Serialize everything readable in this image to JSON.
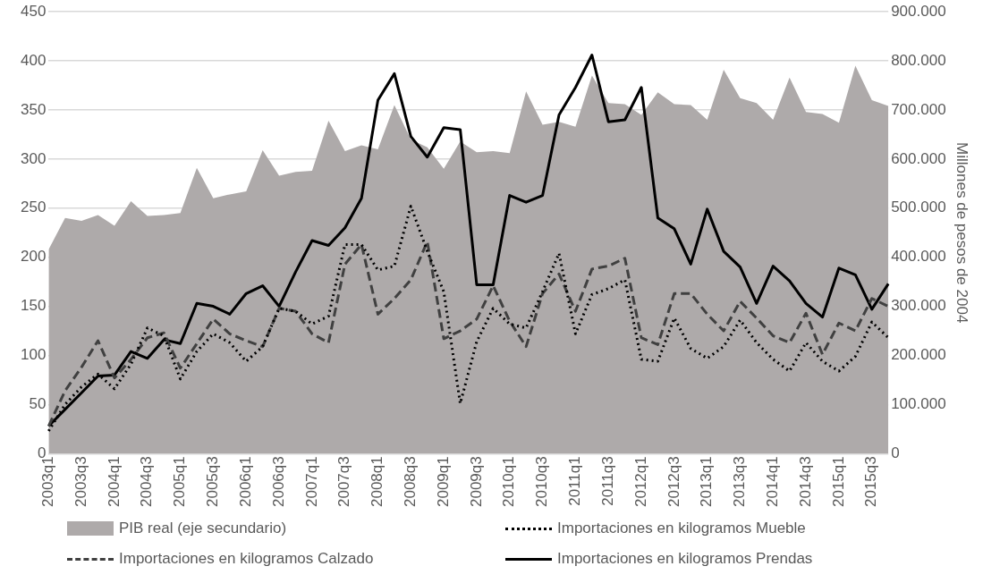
{
  "chart_data": {
    "type": "line",
    "categories": [
      "2003q1",
      null,
      "2003q3",
      null,
      "2004q1",
      null,
      "2004q3",
      null,
      "2005q1",
      null,
      "2005q3",
      null,
      "2006q1",
      null,
      "2006q3",
      null,
      "2007q1",
      null,
      "2007q3",
      null,
      "2008q1",
      null,
      "2008q3",
      null,
      "2009q1",
      null,
      "2009q3",
      null,
      "2010q1",
      null,
      "2010q3",
      null,
      "2011q1",
      null,
      "2011q3",
      null,
      "2012q1",
      null,
      "2012q3",
      null,
      "2013q1",
      null,
      "2013q3",
      null,
      "2014q1",
      null,
      "2014q3",
      null,
      "2015q1",
      null,
      "2015q3",
      null
    ],
    "y2label": "Millones de pesos de 2004",
    "ylim": [
      0,
      450
    ],
    "yticks": [
      0,
      50,
      100,
      150,
      200,
      250,
      300,
      350,
      400,
      450
    ],
    "y2lim": [
      0,
      900000
    ],
    "y2ticks": [
      {
        "value": 0,
        "label": "0"
      },
      {
        "value": 100000,
        "label": "100.000"
      },
      {
        "value": 200000,
        "label": "200.000"
      },
      {
        "value": 300000,
        "label": "300.000"
      },
      {
        "value": 400000,
        "label": "400.000"
      },
      {
        "value": 500000,
        "label": "500.000"
      },
      {
        "value": 600000,
        "label": "600.000"
      },
      {
        "value": 700000,
        "label": "700.000"
      },
      {
        "value": 800000,
        "label": "800.000"
      },
      {
        "value": 900000,
        "label": "900.000"
      }
    ],
    "grid": "y",
    "legend": "bottom",
    "marker": "none",
    "series": [
      {
        "name": "PIB real (eje secundario)",
        "type": "area",
        "axis": "y2",
        "color": "#aeaaaa",
        "values": [
          416000,
          480000,
          474000,
          486000,
          464000,
          514000,
          484000,
          486000,
          490000,
          582000,
          520000,
          528000,
          534000,
          618000,
          566000,
          574000,
          576000,
          678000,
          616000,
          628000,
          620000,
          710000,
          640000,
          624000,
          580000,
          636000,
          614000,
          616000,
          612000,
          738000,
          670000,
          676000,
          666000,
          770000,
          714000,
          712000,
          690000,
          736000,
          712000,
          710000,
          680000,
          782000,
          724000,
          714000,
          680000,
          766000,
          696000,
          692000,
          674000,
          790000,
          720000,
          708000
        ]
      },
      {
        "name": "Importaciones en kilogramos Mueble",
        "line_style": "dotted",
        "color": "#000000",
        "values": [
          23,
          50,
          68,
          81,
          66,
          91,
          128,
          120,
          76,
          104,
          122,
          113,
          94,
          109,
          148,
          145,
          132,
          140,
          213,
          213,
          187,
          191,
          252,
          206,
          165,
          51,
          114,
          148,
          132,
          128,
          165,
          204,
          122,
          162,
          168,
          177,
          96,
          94,
          138,
          107,
          97,
          109,
          136,
          113,
          96,
          84,
          113,
          94,
          84,
          99,
          134,
          118
        ]
      },
      {
        "name": "Importaciones en kilogramos Calzado",
        "line_style": "dashed",
        "color": "#404040",
        "values": [
          28,
          64,
          88,
          115,
          77,
          96,
          118,
          123,
          87,
          112,
          137,
          122,
          115,
          109,
          148,
          145,
          122,
          113,
          193,
          213,
          142,
          158,
          177,
          216,
          117,
          125,
          137,
          171,
          135,
          109,
          163,
          183,
          145,
          188,
          191,
          199,
          118,
          111,
          163,
          163,
          142,
          125,
          155,
          138,
          120,
          113,
          143,
          101,
          133,
          125,
          158,
          150
        ]
      },
      {
        "name": "Importaciones en kilogramos Prendas",
        "line_style": "solid",
        "color": "#000000",
        "values": [
          28,
          45,
          62,
          79,
          80,
          104,
          97,
          116,
          112,
          153,
          150,
          142,
          163,
          171,
          150,
          185,
          217,
          212,
          230,
          260,
          360,
          387,
          323,
          302,
          332,
          330,
          172,
          172,
          263,
          256,
          263,
          345,
          373,
          406,
          338,
          340,
          373,
          240,
          229,
          193,
          249,
          206,
          190,
          153,
          191,
          176,
          153,
          139,
          189,
          182,
          147,
          173
        ]
      }
    ]
  }
}
